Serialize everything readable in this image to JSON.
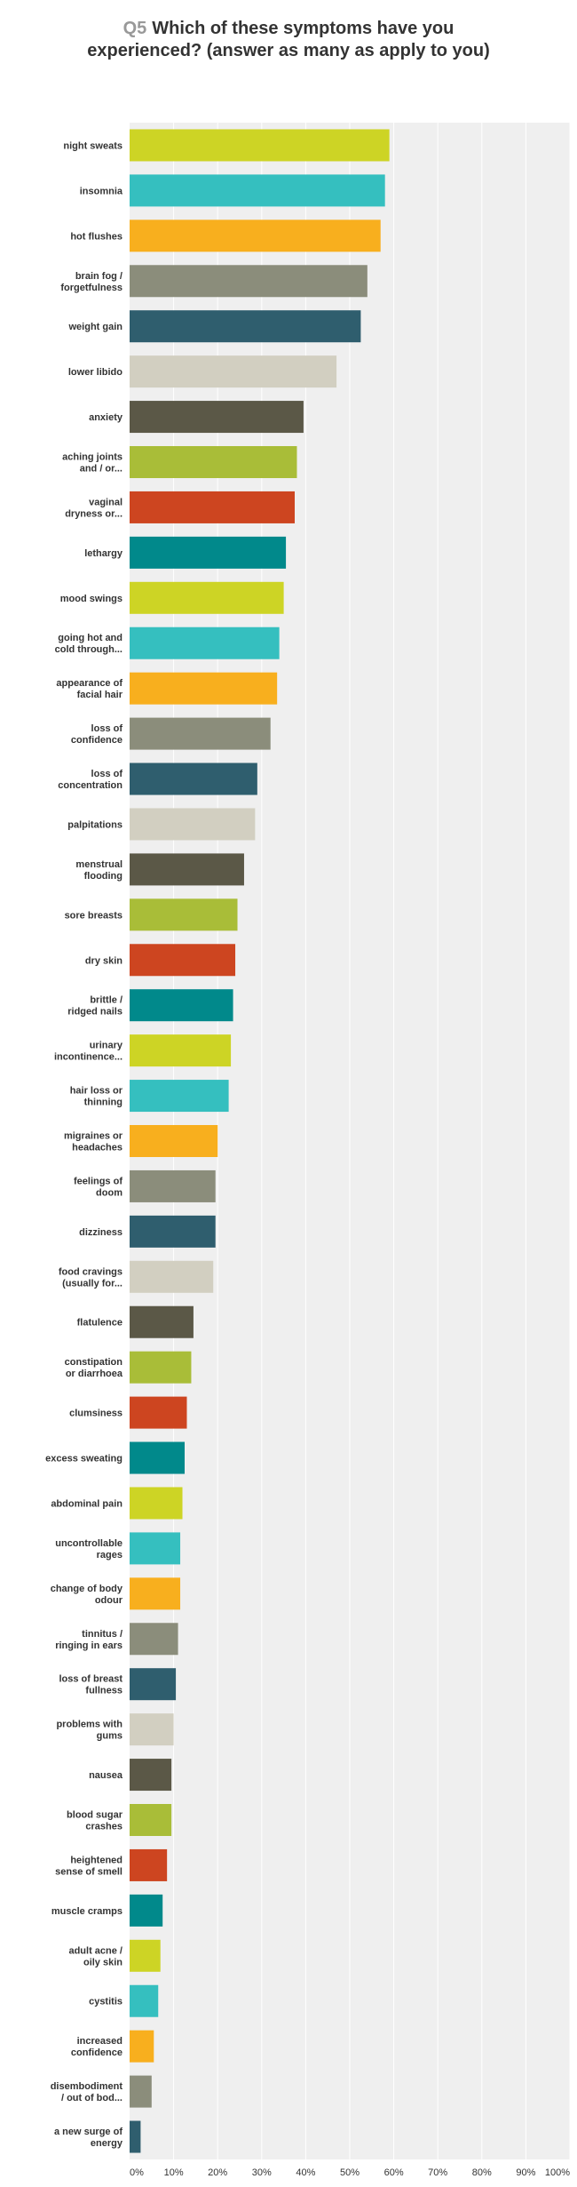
{
  "question": {
    "number": "Q5",
    "text": "Which of these symptoms have you experienced? (answer as many as apply to you)"
  },
  "chart_data": {
    "type": "bar",
    "orientation": "horizontal",
    "xlim": [
      0,
      100
    ],
    "x_ticks": [
      "0%",
      "10%",
      "20%",
      "30%",
      "40%",
      "50%",
      "60%",
      "70%",
      "80%",
      "90%",
      "100%"
    ],
    "grid": true,
    "categories": [
      [
        "night sweats"
      ],
      [
        "insomnia"
      ],
      [
        "hot flushes"
      ],
      [
        "brain fog /",
        "forgetfulness"
      ],
      [
        "weight gain"
      ],
      [
        "lower libido"
      ],
      [
        "anxiety"
      ],
      [
        "aching joints",
        "and / or..."
      ],
      [
        "vaginal",
        "dryness or..."
      ],
      [
        "lethargy"
      ],
      [
        "mood swings"
      ],
      [
        "going hot and",
        "cold through..."
      ],
      [
        "appearance of",
        "facial hair"
      ],
      [
        "loss of",
        "confidence"
      ],
      [
        "loss of",
        "concentration"
      ],
      [
        "palpitations"
      ],
      [
        "menstrual",
        "flooding"
      ],
      [
        "sore breasts"
      ],
      [
        "dry skin"
      ],
      [
        "brittle /",
        "ridged nails"
      ],
      [
        "urinary",
        "incontinence..."
      ],
      [
        "hair loss or",
        "thinning"
      ],
      [
        "migraines or",
        "headaches"
      ],
      [
        "feelings of",
        "doom"
      ],
      [
        "dizziness"
      ],
      [
        "food cravings",
        "(usually for..."
      ],
      [
        "flatulence"
      ],
      [
        "constipation",
        "or diarrhoea"
      ],
      [
        "clumsiness"
      ],
      [
        "excess sweating"
      ],
      [
        "abdominal pain"
      ],
      [
        "uncontrollable",
        "rages"
      ],
      [
        "change of body",
        "odour"
      ],
      [
        "tinnitus /",
        "ringing in ears"
      ],
      [
        "loss of breast",
        "fullness"
      ],
      [
        "problems with",
        "gums"
      ],
      [
        "nausea"
      ],
      [
        "blood sugar",
        "crashes"
      ],
      [
        "heightened",
        "sense of smell"
      ],
      [
        "muscle cramps"
      ],
      [
        "adult acne /",
        "oily skin"
      ],
      [
        "cystitis"
      ],
      [
        "increased",
        "confidence"
      ],
      [
        "disembodiment",
        "/ out of bod..."
      ],
      [
        "a new surge of",
        "energy"
      ]
    ],
    "values": [
      59,
      58,
      57,
      54,
      52.5,
      47,
      39.5,
      38,
      37.5,
      35.5,
      35,
      34,
      33.5,
      32,
      29,
      28.5,
      26,
      24.5,
      24,
      23.5,
      23,
      22.5,
      20,
      19.5,
      19.5,
      19,
      14.5,
      14,
      13,
      12.5,
      12,
      11.5,
      11.5,
      11,
      10.5,
      10,
      9.5,
      9.5,
      8.5,
      7.5,
      7,
      6.5,
      5.5,
      5,
      2.5
    ],
    "palette": [
      "#cdd425",
      "#35bfbf",
      "#f8af1e",
      "#8b8d7b",
      "#2f5e6e",
      "#d2cfc1",
      "#5b5847",
      "#a9bd38",
      "#cd4520",
      "#01898b"
    ]
  }
}
